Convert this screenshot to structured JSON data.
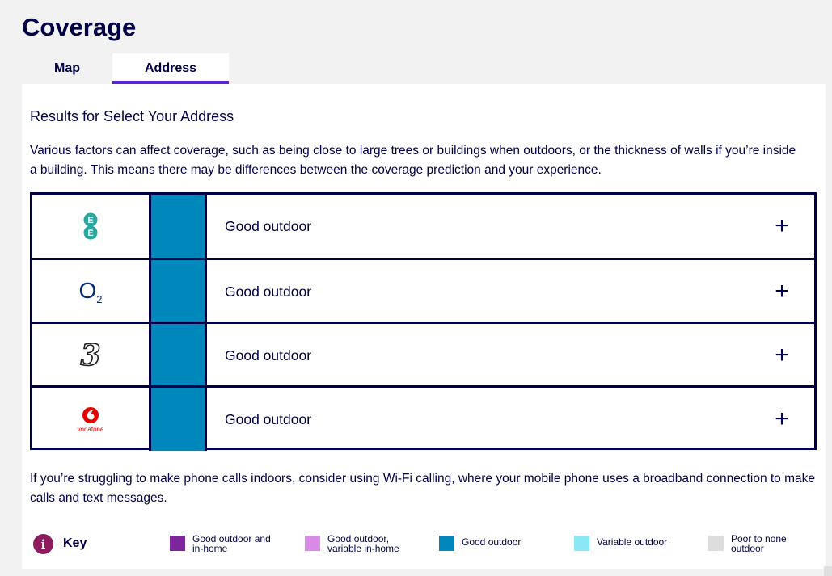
{
  "page": {
    "title": "Coverage"
  },
  "tabs": [
    {
      "label": "Map",
      "active": false
    },
    {
      "label": "Address",
      "active": true
    }
  ],
  "results": {
    "title": "Results for Select Your Address",
    "intro": "Various factors can affect coverage, such as being close to large trees or buildings when outdoors, or the thickness of walls if you’re inside a building. This means there may be differences between the coverage prediction and your experience."
  },
  "networks": [
    {
      "logo": "ee-logo",
      "status": "Good outdoor",
      "swatch_color": "#0088bc",
      "expand": "+"
    },
    {
      "logo": "o2-logo",
      "o2_text": "O",
      "o2_sub": "2",
      "status": "Good outdoor",
      "swatch_color": "#0088bc",
      "expand": "+"
    },
    {
      "logo": "three-logo",
      "three_text": "3",
      "status": "Good outdoor",
      "swatch_color": "#0088bc",
      "expand": "+"
    },
    {
      "logo": "vodafone-logo",
      "vodafone_text": "vodafone",
      "status": "Good outdoor",
      "swatch_color": "#0088bc",
      "expand": "+"
    }
  ],
  "wifi_note": "If you’re struggling to make phone calls indoors, consider using Wi-Fi calling, where your mobile phone uses a broadband connection to make calls and text messages.",
  "key": {
    "label": "Key",
    "icon": "info-icon",
    "icon_text": "i",
    "items": [
      {
        "line1": "Good outdoor and",
        "line2": "in-home",
        "color": "#7b2699"
      },
      {
        "line1": "Good outdoor,",
        "line2": "variable in-home",
        "color": "#d98ae6"
      },
      {
        "line1": "Good outdoor",
        "line2": "",
        "color": "#0088bc"
      },
      {
        "line1": "Variable outdoor",
        "line2": "",
        "color": "#8ae8f5"
      },
      {
        "line1": "Poor to none",
        "line2": "outdoor",
        "color": "#dddddd"
      }
    ]
  }
}
